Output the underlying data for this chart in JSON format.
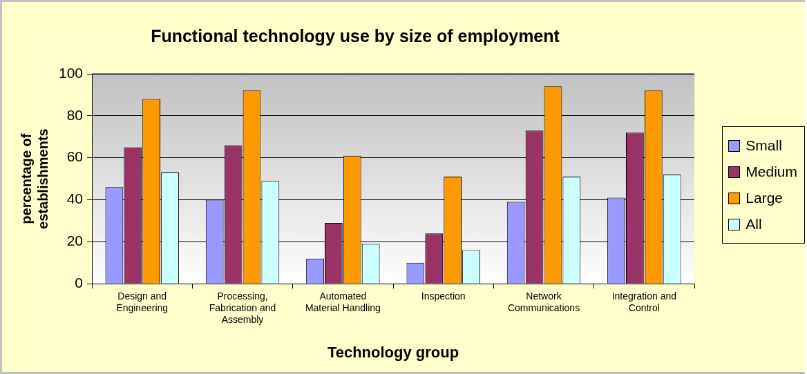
{
  "chart_data": {
    "type": "bar",
    "title": "Functional technology use by size of employment",
    "xlabel": "Technology group",
    "ylabel": "percentage of establishments",
    "categories": [
      "Design and Engineering",
      "Processing, Fabrication and Assembly",
      "Automated Material Handling",
      "Inspection",
      "Network Communications",
      "Integration and Control"
    ],
    "series": [
      {
        "name": "Small",
        "color": "#9999ff",
        "values": [
          46,
          40,
          12,
          10,
          39,
          41
        ]
      },
      {
        "name": "Medium",
        "color": "#993366",
        "values": [
          65,
          66,
          29,
          24,
          73,
          72
        ]
      },
      {
        "name": "Large",
        "color": "#ff9900",
        "values": [
          88,
          92,
          61,
          51,
          94,
          92
        ]
      },
      {
        "name": "All",
        "color": "#ccffff",
        "values": [
          53,
          49,
          19,
          16,
          51,
          52
        ]
      }
    ],
    "ylim": [
      0,
      100
    ],
    "yticks": [
      0,
      20,
      40,
      60,
      80,
      100
    ],
    "grid": "y",
    "legend": "right"
  }
}
